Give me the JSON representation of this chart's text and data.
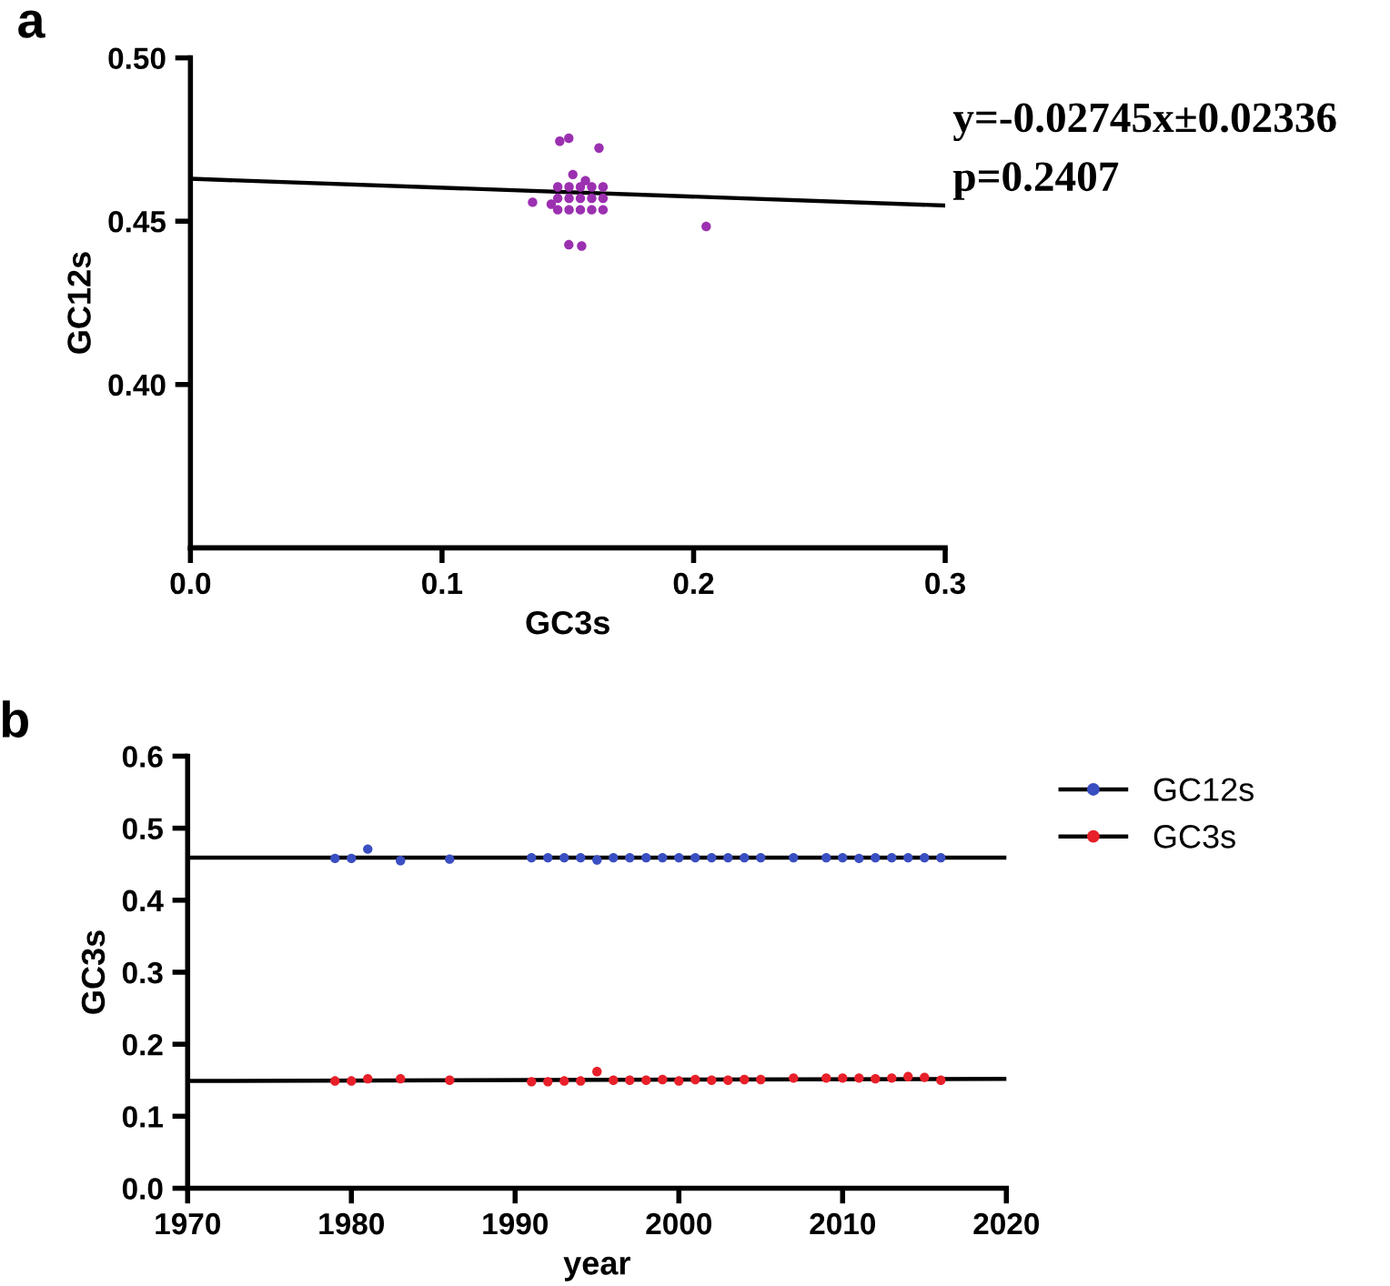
{
  "chart_data": [
    {
      "type": "scatter",
      "title": "a",
      "xlabel": "GC3s",
      "ylabel": "GC12s",
      "xlim": [
        0,
        0.3
      ],
      "ylim": [
        0.35,
        0.5
      ],
      "xticks": [
        {
          "value": 0,
          "label": "0.0"
        },
        0.1,
        0.2,
        0.3
      ],
      "yticks": [
        {
          "value": 0.4,
          "label": "0.40"
        },
        0.45,
        {
          "value": 0.5,
          "label": "0.50"
        }
      ],
      "grid": false,
      "legend": false,
      "annotations": [
        "y=-0.02745x±0.02336",
        "p=0.2407"
      ],
      "series": [
        {
          "color": "#9b30b0",
          "marker": "circle",
          "x": [
            0.1468,
            0.1504,
            0.1624,
            0.136,
            0.1434,
            0.1504,
            0.1555,
            0.152,
            0.157,
            0.205,
            0.146,
            0.1505,
            0.155,
            0.1595,
            0.164,
            0.146,
            0.1505,
            0.155,
            0.1595,
            0.164,
            0.146,
            0.1505,
            0.155,
            0.1595,
            0.164
          ],
          "values": [
            0.4745,
            0.4754,
            0.4724,
            0.4558,
            0.4552,
            0.4428,
            0.4424,
            0.4643,
            0.4624,
            0.4484,
            0.4535,
            0.4535,
            0.4535,
            0.4535,
            0.4535,
            0.457,
            0.457,
            0.457,
            0.457,
            0.457,
            0.4605,
            0.4605,
            0.4605,
            0.4605,
            0.4605
          ]
        },
        {
          "type": "line",
          "color": "#000000",
          "x": [
            0,
            0.3
          ],
          "values": [
            0.463,
            0.4548
          ]
        }
      ]
    },
    {
      "type": "scatter",
      "title": "b",
      "xlabel": "year",
      "ylabel": "GC3s",
      "xlim": [
        1970,
        2020
      ],
      "ylim": [
        0,
        0.6
      ],
      "xticks": [
        1970,
        1980,
        1990,
        2000,
        2010,
        2020
      ],
      "yticks": [
        {
          "value": 0,
          "label": "0.0"
        },
        0.1,
        0.2,
        0.3,
        0.4,
        0.5,
        0.6
      ],
      "grid": false,
      "legend": "top right",
      "series": [
        {
          "name": "GC12s",
          "color": "#3a4fc1",
          "marker": "circle",
          "x": [
            1979,
            1980,
            1981,
            1983,
            1986,
            1991,
            1992,
            1993,
            1994,
            1995,
            1996,
            1997,
            1998,
            1999,
            2000,
            2001,
            2002,
            2003,
            2004,
            2005,
            2007,
            2009,
            2010,
            2011,
            2012,
            2013,
            2014,
            2015,
            2016
          ],
          "values": [
            0.458,
            0.458,
            0.471,
            0.455,
            0.457,
            0.459,
            0.459,
            0.459,
            0.459,
            0.456,
            0.459,
            0.459,
            0.459,
            0.459,
            0.459,
            0.459,
            0.459,
            0.459,
            0.459,
            0.459,
            0.459,
            0.459,
            0.459,
            0.458,
            0.459,
            0.459,
            0.459,
            0.459,
            0.459
          ]
        },
        {
          "name": "GC3s",
          "color": "#e8202a",
          "marker": "circle",
          "x": [
            1979,
            1980,
            1981,
            1983,
            1986,
            1991,
            1992,
            1993,
            1994,
            1995,
            1996,
            1997,
            1998,
            1999,
            2000,
            2001,
            2002,
            2003,
            2004,
            2005,
            2007,
            2009,
            2010,
            2011,
            2012,
            2013,
            2014,
            2015,
            2016
          ],
          "values": [
            0.149,
            0.149,
            0.152,
            0.152,
            0.15,
            0.148,
            0.148,
            0.149,
            0.149,
            0.162,
            0.15,
            0.15,
            0.15,
            0.151,
            0.149,
            0.151,
            0.15,
            0.15,
            0.151,
            0.151,
            0.153,
            0.153,
            0.153,
            0.153,
            0.152,
            0.153,
            0.155,
            0.154,
            0.15
          ]
        },
        {
          "type": "line",
          "color": "#000000",
          "x": [
            1970,
            2020
          ],
          "values": [
            0.459,
            0.459
          ]
        },
        {
          "type": "line",
          "color": "#000000",
          "x": [
            1970,
            2020
          ],
          "values": [
            0.149,
            0.152
          ]
        }
      ]
    }
  ]
}
